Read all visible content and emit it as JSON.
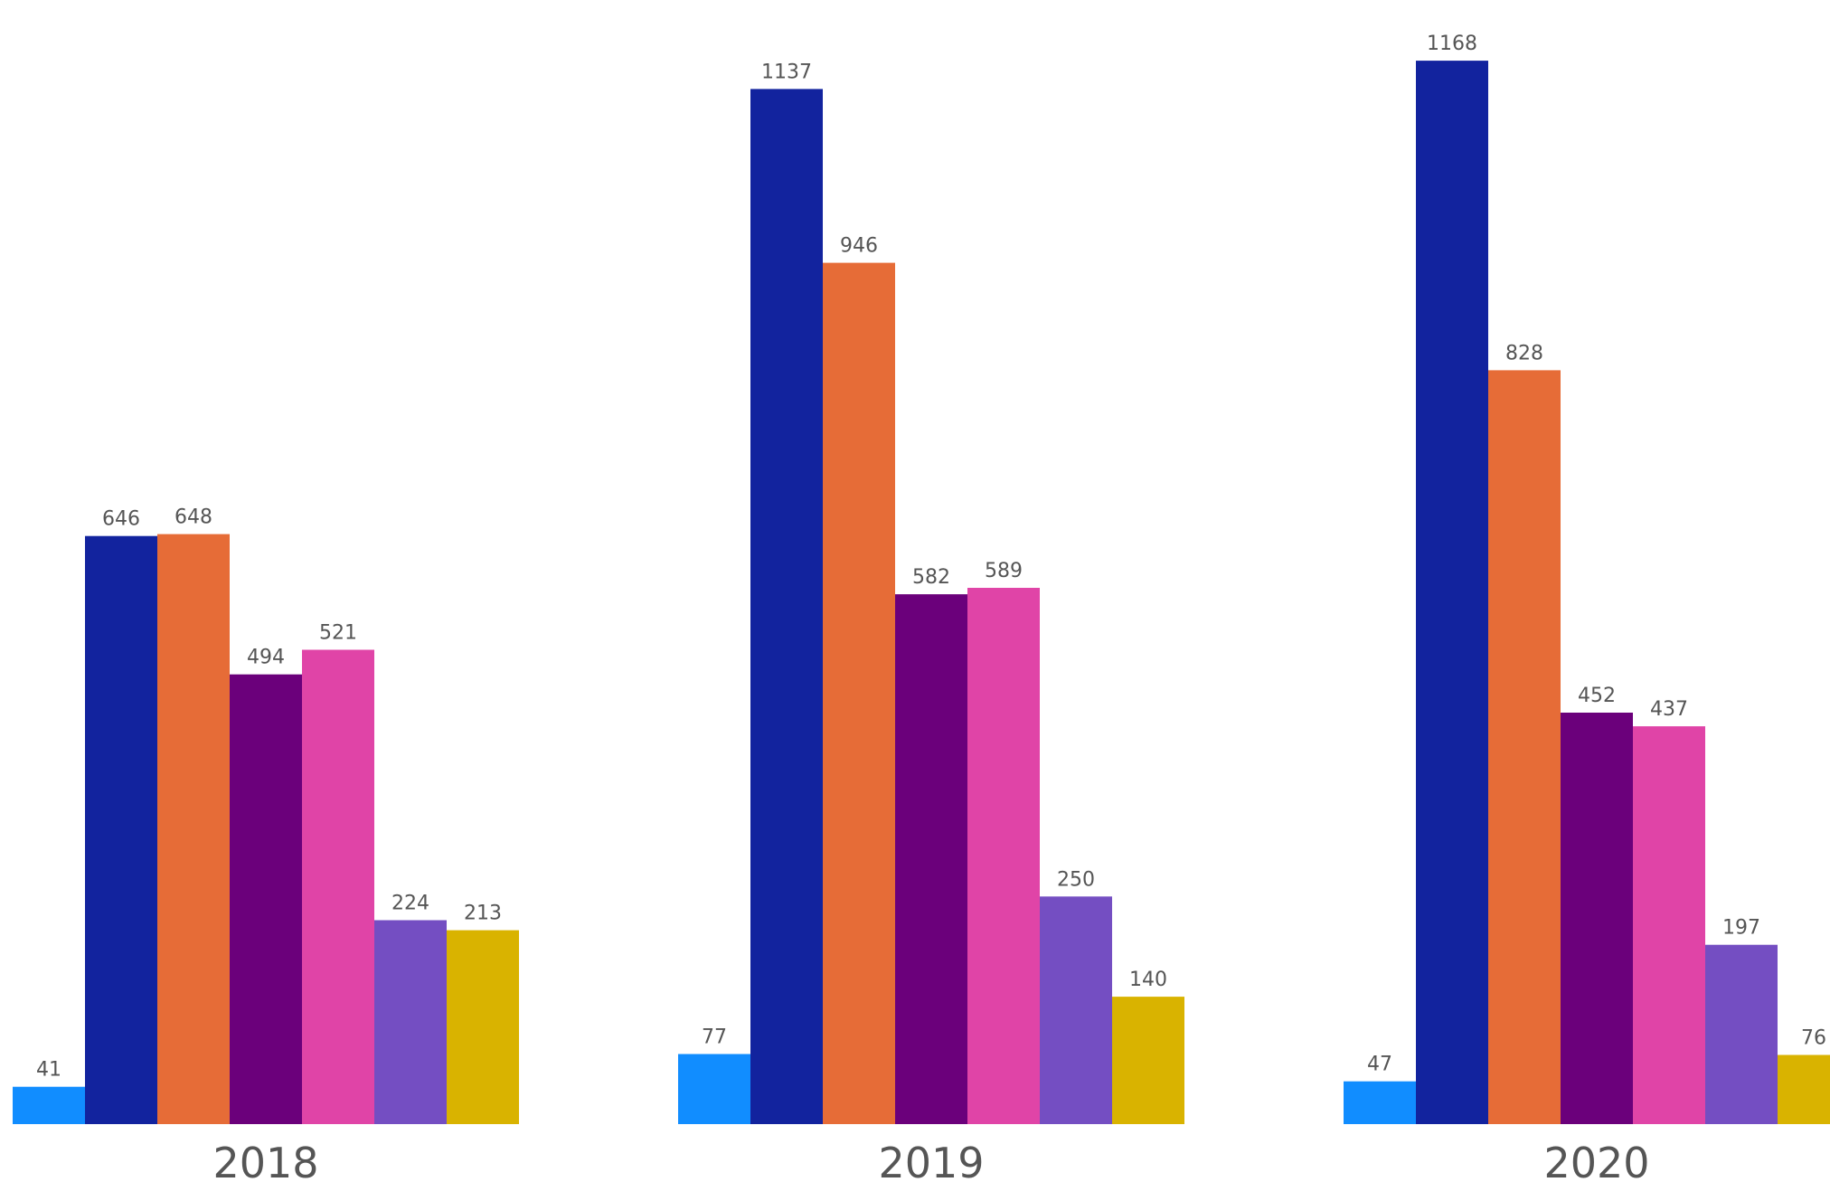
{
  "chart_data": {
    "type": "bar",
    "categories": [
      "2018",
      "2019",
      "2020"
    ],
    "series": [
      {
        "values": [
          41,
          77,
          47
        ],
        "color": "#118DFF"
      },
      {
        "values": [
          646,
          1137,
          1168
        ],
        "color": "#12239E"
      },
      {
        "values": [
          648,
          946,
          828
        ],
        "color": "#E66C37"
      },
      {
        "values": [
          494,
          582,
          452
        ],
        "color": "#6B007B"
      },
      {
        "values": [
          521,
          589,
          437
        ],
        "color": "#E044A7"
      },
      {
        "values": [
          224,
          250,
          197
        ],
        "color": "#744EC2"
      },
      {
        "values": [
          213,
          140,
          76
        ],
        "color": "#D9B300"
      }
    ],
    "title": "",
    "xlabel": "",
    "ylabel": "",
    "ylim": [
      0,
      1190
    ],
    "grid": false,
    "legend": "none",
    "data_labels": true
  }
}
